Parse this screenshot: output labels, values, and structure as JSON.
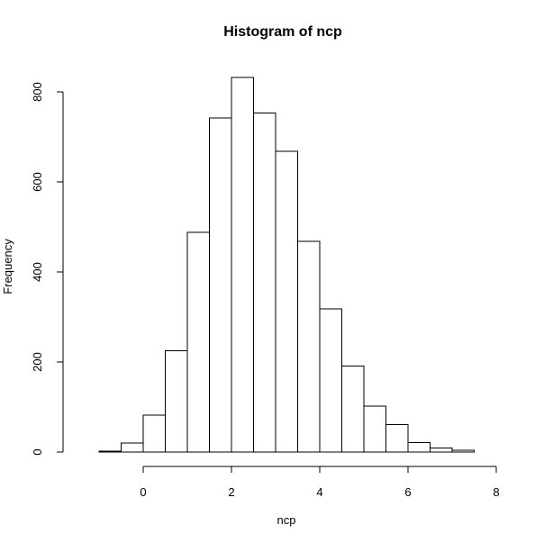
{
  "chart_data": {
    "type": "bar",
    "title": "Histogram of ncp",
    "xlabel": "ncp",
    "ylabel": "Frequency",
    "bin_edges": [
      -1.0,
      -0.5,
      0.0,
      0.5,
      1.0,
      1.5,
      2.0,
      2.5,
      3.0,
      3.5,
      4.0,
      4.5,
      5.0,
      5.5,
      6.0,
      6.5,
      7.0,
      7.5
    ],
    "values": [
      2,
      20,
      82,
      225,
      488,
      742,
      832,
      753,
      668,
      468,
      318,
      191,
      102,
      61,
      21,
      9,
      4
    ],
    "xlim": [
      -1.5,
      8
    ],
    "ylim": [
      0,
      850
    ],
    "x_ticks": [
      0,
      2,
      4,
      6,
      8
    ],
    "y_ticks": [
      0,
      200,
      400,
      600,
      800
    ],
    "x_tick_labels": [
      "0",
      "2",
      "4",
      "6",
      "8"
    ],
    "y_tick_labels": [
      "0",
      "200",
      "400",
      "600",
      "800"
    ],
    "bar_fill": "#ffffff",
    "bar_stroke": "#000000",
    "grid": false,
    "legend": false
  }
}
